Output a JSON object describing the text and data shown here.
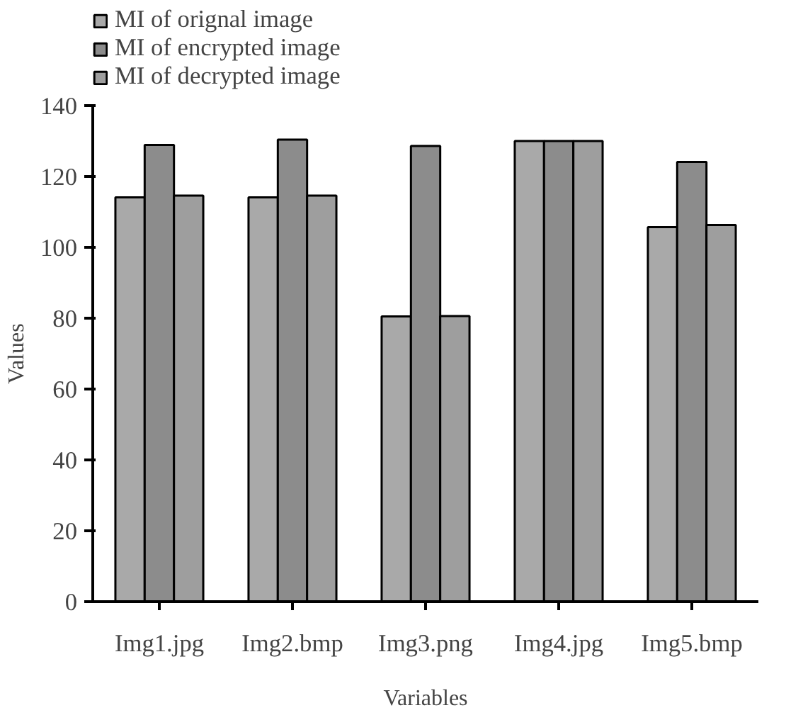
{
  "chart_data": {
    "type": "bar",
    "xlabel": "Variables",
    "ylabel": "Values",
    "categories": [
      "Img1.jpg",
      "Img2.bmp",
      "Img3.png",
      "Img4.jpg",
      "Img5.bmp"
    ],
    "series": [
      {
        "name": "MI of orignal image",
        "color": "#a9a9a9",
        "values": [
          114.1,
          114.1,
          80.5,
          130,
          105.7
        ]
      },
      {
        "name": "MI of encrypted image",
        "color": "#8c8c8c",
        "values": [
          128.9,
          130.4,
          128.6,
          130,
          124.1
        ]
      },
      {
        "name": "MI of decrypted image",
        "color": "#9e9e9e",
        "values": [
          114.6,
          114.6,
          80.6,
          130,
          106.3
        ]
      }
    ],
    "ylim": [
      0,
      140
    ],
    "yticks": [
      0,
      20,
      40,
      60,
      80,
      100,
      120,
      140
    ],
    "grid": false,
    "legend": "top left"
  }
}
